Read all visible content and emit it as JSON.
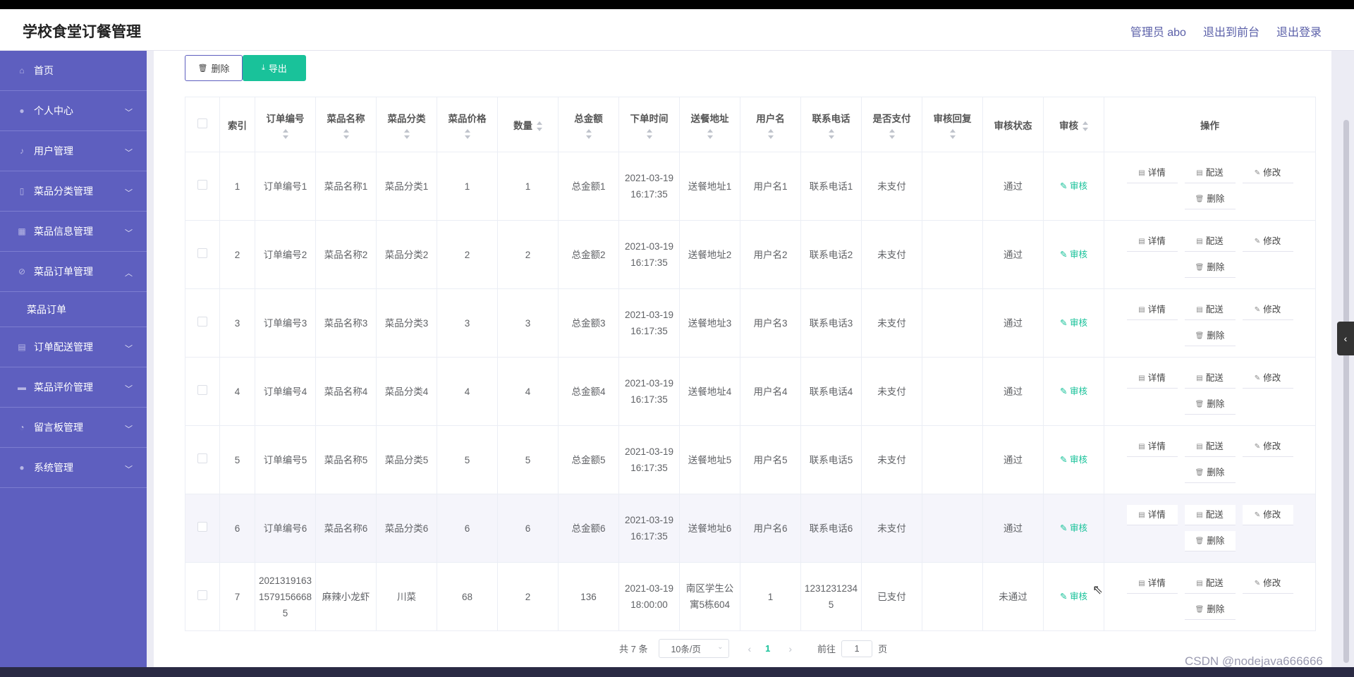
{
  "header": {
    "brand": "学校食堂订餐管理",
    "links": [
      "管理员 abo",
      "退出到前台",
      "退出登录"
    ]
  },
  "sidebar": {
    "items": [
      {
        "label": "首页",
        "icon": "home-icon",
        "chevron": ""
      },
      {
        "label": "个人中心",
        "icon": "user-icon",
        "chevron": "﹀"
      },
      {
        "label": "用户管理",
        "icon": "microphone-icon",
        "chevron": "﹀"
      },
      {
        "label": "菜品分类管理",
        "icon": "phone-icon",
        "chevron": "﹀"
      },
      {
        "label": "菜品信息管理",
        "icon": "grid-icon",
        "chevron": "﹀"
      },
      {
        "label": "菜品订单管理",
        "icon": "no-sign-icon",
        "chevron": "︿"
      },
      {
        "label": "订单配送管理",
        "icon": "clipboard-icon",
        "chevron": "﹀"
      },
      {
        "label": "菜品评价管理",
        "icon": "monitor-icon",
        "chevron": "﹀"
      },
      {
        "label": "留言板管理",
        "icon": "gauge-icon",
        "chevron": "﹀"
      },
      {
        "label": "系统管理",
        "icon": "user-icon",
        "chevron": "﹀"
      }
    ],
    "submenu": {
      "label": "菜品订单"
    }
  },
  "toolbar": {
    "delete_label": "删除",
    "export_label": "导出"
  },
  "table": {
    "columns": [
      "索引",
      "订单编号",
      "菜品名称",
      "菜品分类",
      "菜品价格",
      "数量",
      "总金额",
      "下单时间",
      "送餐地址",
      "用户名",
      "联系电话",
      "是否支付",
      "审核回复",
      "审核状态",
      "审核",
      "操作"
    ],
    "audit_label": "审核",
    "ops": [
      "详情",
      "配送",
      "修改",
      "删除"
    ],
    "rows": [
      {
        "idx": "1",
        "order_no": "订单编号1",
        "dish": "菜品名称1",
        "category": "菜品分类1",
        "price": "1",
        "qty": "1",
        "total": "总金额1",
        "time": "2021-03-19 16:17:35",
        "address": "送餐地址1",
        "user": "用户名1",
        "phone": "联系电话1",
        "paid": "未支付",
        "reply": "",
        "status": "通过"
      },
      {
        "idx": "2",
        "order_no": "订单编号2",
        "dish": "菜品名称2",
        "category": "菜品分类2",
        "price": "2",
        "qty": "2",
        "total": "总金额2",
        "time": "2021-03-19 16:17:35",
        "address": "送餐地址2",
        "user": "用户名2",
        "phone": "联系电话2",
        "paid": "未支付",
        "reply": "",
        "status": "通过"
      },
      {
        "idx": "3",
        "order_no": "订单编号3",
        "dish": "菜品名称3",
        "category": "菜品分类3",
        "price": "3",
        "qty": "3",
        "total": "总金额3",
        "time": "2021-03-19 16:17:35",
        "address": "送餐地址3",
        "user": "用户名3",
        "phone": "联系电话3",
        "paid": "未支付",
        "reply": "",
        "status": "通过"
      },
      {
        "idx": "4",
        "order_no": "订单编号4",
        "dish": "菜品名称4",
        "category": "菜品分类4",
        "price": "4",
        "qty": "4",
        "total": "总金额4",
        "time": "2021-03-19 16:17:35",
        "address": "送餐地址4",
        "user": "用户名4",
        "phone": "联系电话4",
        "paid": "未支付",
        "reply": "",
        "status": "通过"
      },
      {
        "idx": "5",
        "order_no": "订单编号5",
        "dish": "菜品名称5",
        "category": "菜品分类5",
        "price": "5",
        "qty": "5",
        "total": "总金额5",
        "time": "2021-03-19 16:17:35",
        "address": "送餐地址5",
        "user": "用户名5",
        "phone": "联系电话5",
        "paid": "未支付",
        "reply": "",
        "status": "通过"
      },
      {
        "idx": "6",
        "order_no": "订单编号6",
        "dish": "菜品名称6",
        "category": "菜品分类6",
        "price": "6",
        "qty": "6",
        "total": "总金额6",
        "time": "2021-03-19 16:17:35",
        "address": "送餐地址6",
        "user": "用户名6",
        "phone": "联系电话6",
        "paid": "未支付",
        "reply": "",
        "status": "通过"
      },
      {
        "idx": "7",
        "order_no": "20213191631579156668​5",
        "dish": "麻辣小龙虾",
        "category": "川菜",
        "price": "68",
        "qty": "2",
        "total": "136",
        "time": "2021-03-19 18:00:00",
        "address": "南区学生公寓5栋604",
        "user": "1",
        "phone": "12312312345",
        "paid": "已支付",
        "reply": "",
        "status": "未通过"
      }
    ]
  },
  "pagination": {
    "total": "共 7 条",
    "page_size": "10条/页",
    "current_page": "1",
    "goto_label": "前往",
    "goto_value": "1",
    "page_suffix": "页"
  },
  "watermark": "CSDN @nodejava666666"
}
